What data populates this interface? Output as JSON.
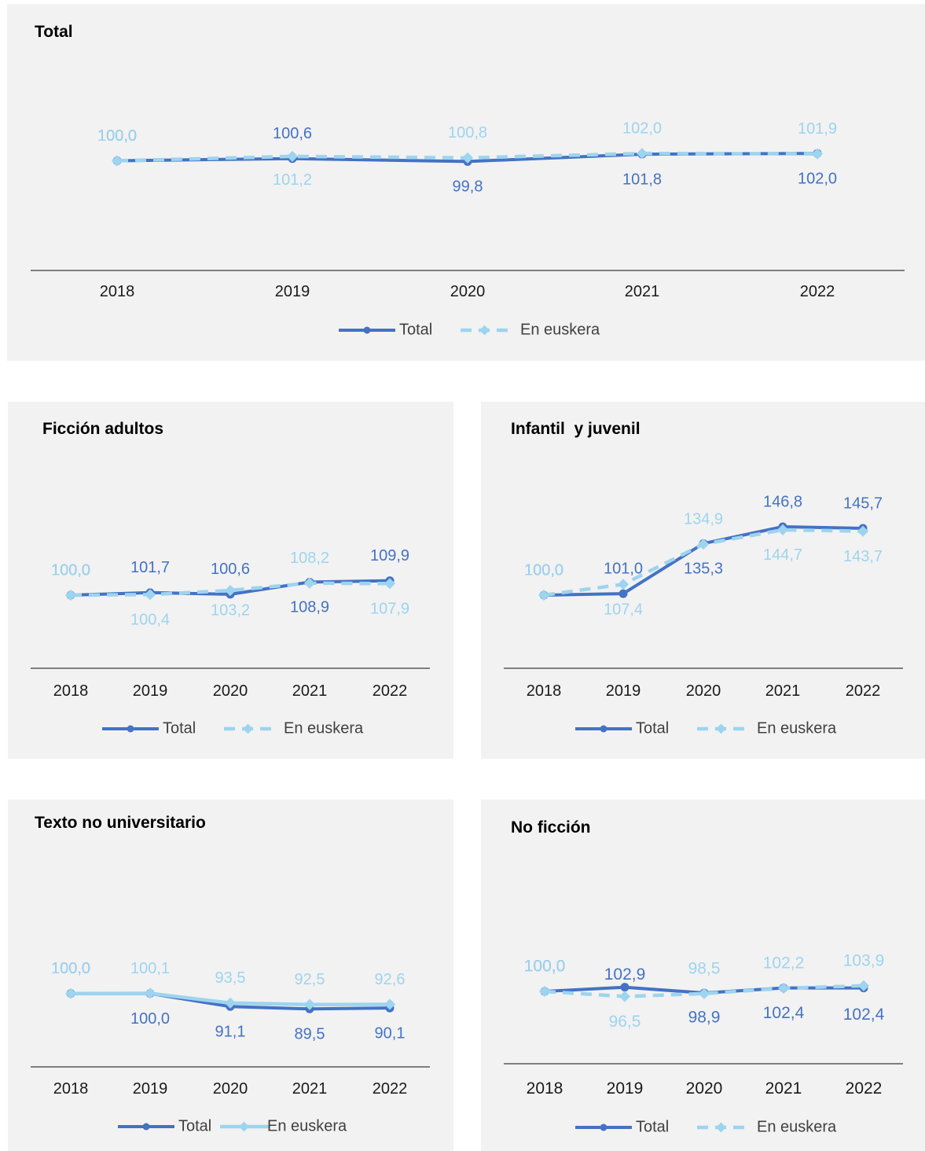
{
  "colors": {
    "total": "#4472c4",
    "euskera": "#9dd4ef",
    "axis": "#595959",
    "tick_text": "#1a1a1a",
    "legend_text": "#404040",
    "panel_bg": "#f2f2f2"
  },
  "legend": {
    "total": "Total",
    "euskera": "En euskera"
  },
  "chart_data": [
    {
      "type": "line",
      "title": "Total",
      "categories": [
        "2018",
        "2019",
        "2020",
        "2021",
        "2022"
      ],
      "euskera_dashed": true,
      "series": [
        {
          "name": "Total",
          "values": [
            100.0,
            100.6,
            99.8,
            101.8,
            102.0
          ],
          "labels": [
            "100,0",
            "100,6",
            "99,8",
            "101,8",
            "102,0"
          ]
        },
        {
          "name": "En euskera",
          "values": [
            100.0,
            101.2,
            100.8,
            102.0,
            101.9
          ],
          "labels": [
            "100,0",
            "101,2",
            "100,8",
            "102,0",
            "101,9"
          ]
        }
      ],
      "ylim": [
        70,
        130
      ]
    },
    {
      "type": "line",
      "title": "Ficción adultos",
      "categories": [
        "2018",
        "2019",
        "2020",
        "2021",
        "2022"
      ],
      "euskera_dashed": true,
      "series": [
        {
          "name": "Total",
          "values": [
            100.0,
            101.7,
            100.6,
            108.9,
            109.9
          ],
          "labels": [
            "100,0",
            "101,7",
            "100,6",
            "108,9",
            "109,9"
          ]
        },
        {
          "name": "En euskera",
          "values": [
            100.0,
            100.4,
            103.2,
            108.2,
            107.9
          ],
          "labels": [
            "100,0",
            "100,4",
            "103,2",
            "108,2",
            "107,9"
          ]
        }
      ],
      "ylim": [
        50,
        200
      ]
    },
    {
      "type": "line",
      "title": "Infantil  y juvenil",
      "categories": [
        "2018",
        "2019",
        "2020",
        "2021",
        "2022"
      ],
      "euskera_dashed": true,
      "series": [
        {
          "name": "Total",
          "values": [
            100.0,
            101.0,
            135.3,
            146.8,
            145.7
          ],
          "labels": [
            "100,0",
            "101,0",
            "135,3",
            "146,8",
            "145,7"
          ]
        },
        {
          "name": "En euskera",
          "values": [
            100.0,
            107.4,
            134.9,
            144.7,
            143.7
          ],
          "labels": [
            "100,0",
            "107,4",
            "134,9",
            "144,7",
            "143,7"
          ]
        }
      ],
      "ylim": [
        50,
        200
      ]
    },
    {
      "type": "line",
      "title": "Texto no universitario",
      "categories": [
        "2018",
        "2019",
        "2020",
        "2021",
        "2022"
      ],
      "euskera_dashed": false,
      "series": [
        {
          "name": "Total",
          "values": [
            100.0,
            100.0,
            91.1,
            89.5,
            90.1
          ],
          "labels": [
            "100,0",
            "100,0",
            "91,1",
            "89,5",
            "90,1"
          ]
        },
        {
          "name": "En euskera",
          "values": [
            100.0,
            100.1,
            93.5,
            92.5,
            92.6
          ],
          "labels": [
            "100,0",
            "100,1",
            "93,5",
            "92,5",
            "92,6"
          ]
        }
      ],
      "ylim": [
        50,
        200
      ]
    },
    {
      "type": "line",
      "title": "No ficción",
      "categories": [
        "2018",
        "2019",
        "2020",
        "2021",
        "2022"
      ],
      "euskera_dashed": true,
      "series": [
        {
          "name": "Total",
          "values": [
            100.0,
            102.9,
            98.9,
            102.4,
            102.4
          ],
          "labels": [
            "100,0",
            "102,9",
            "98,9",
            "102,4",
            "102,4"
          ]
        },
        {
          "name": "En euskera",
          "values": [
            100.0,
            96.5,
            98.5,
            102.2,
            103.9
          ],
          "labels": [
            "100,0",
            "96,5",
            "98,5",
            "102,2",
            "103,9"
          ]
        }
      ],
      "ylim": [
        50,
        200
      ]
    }
  ]
}
